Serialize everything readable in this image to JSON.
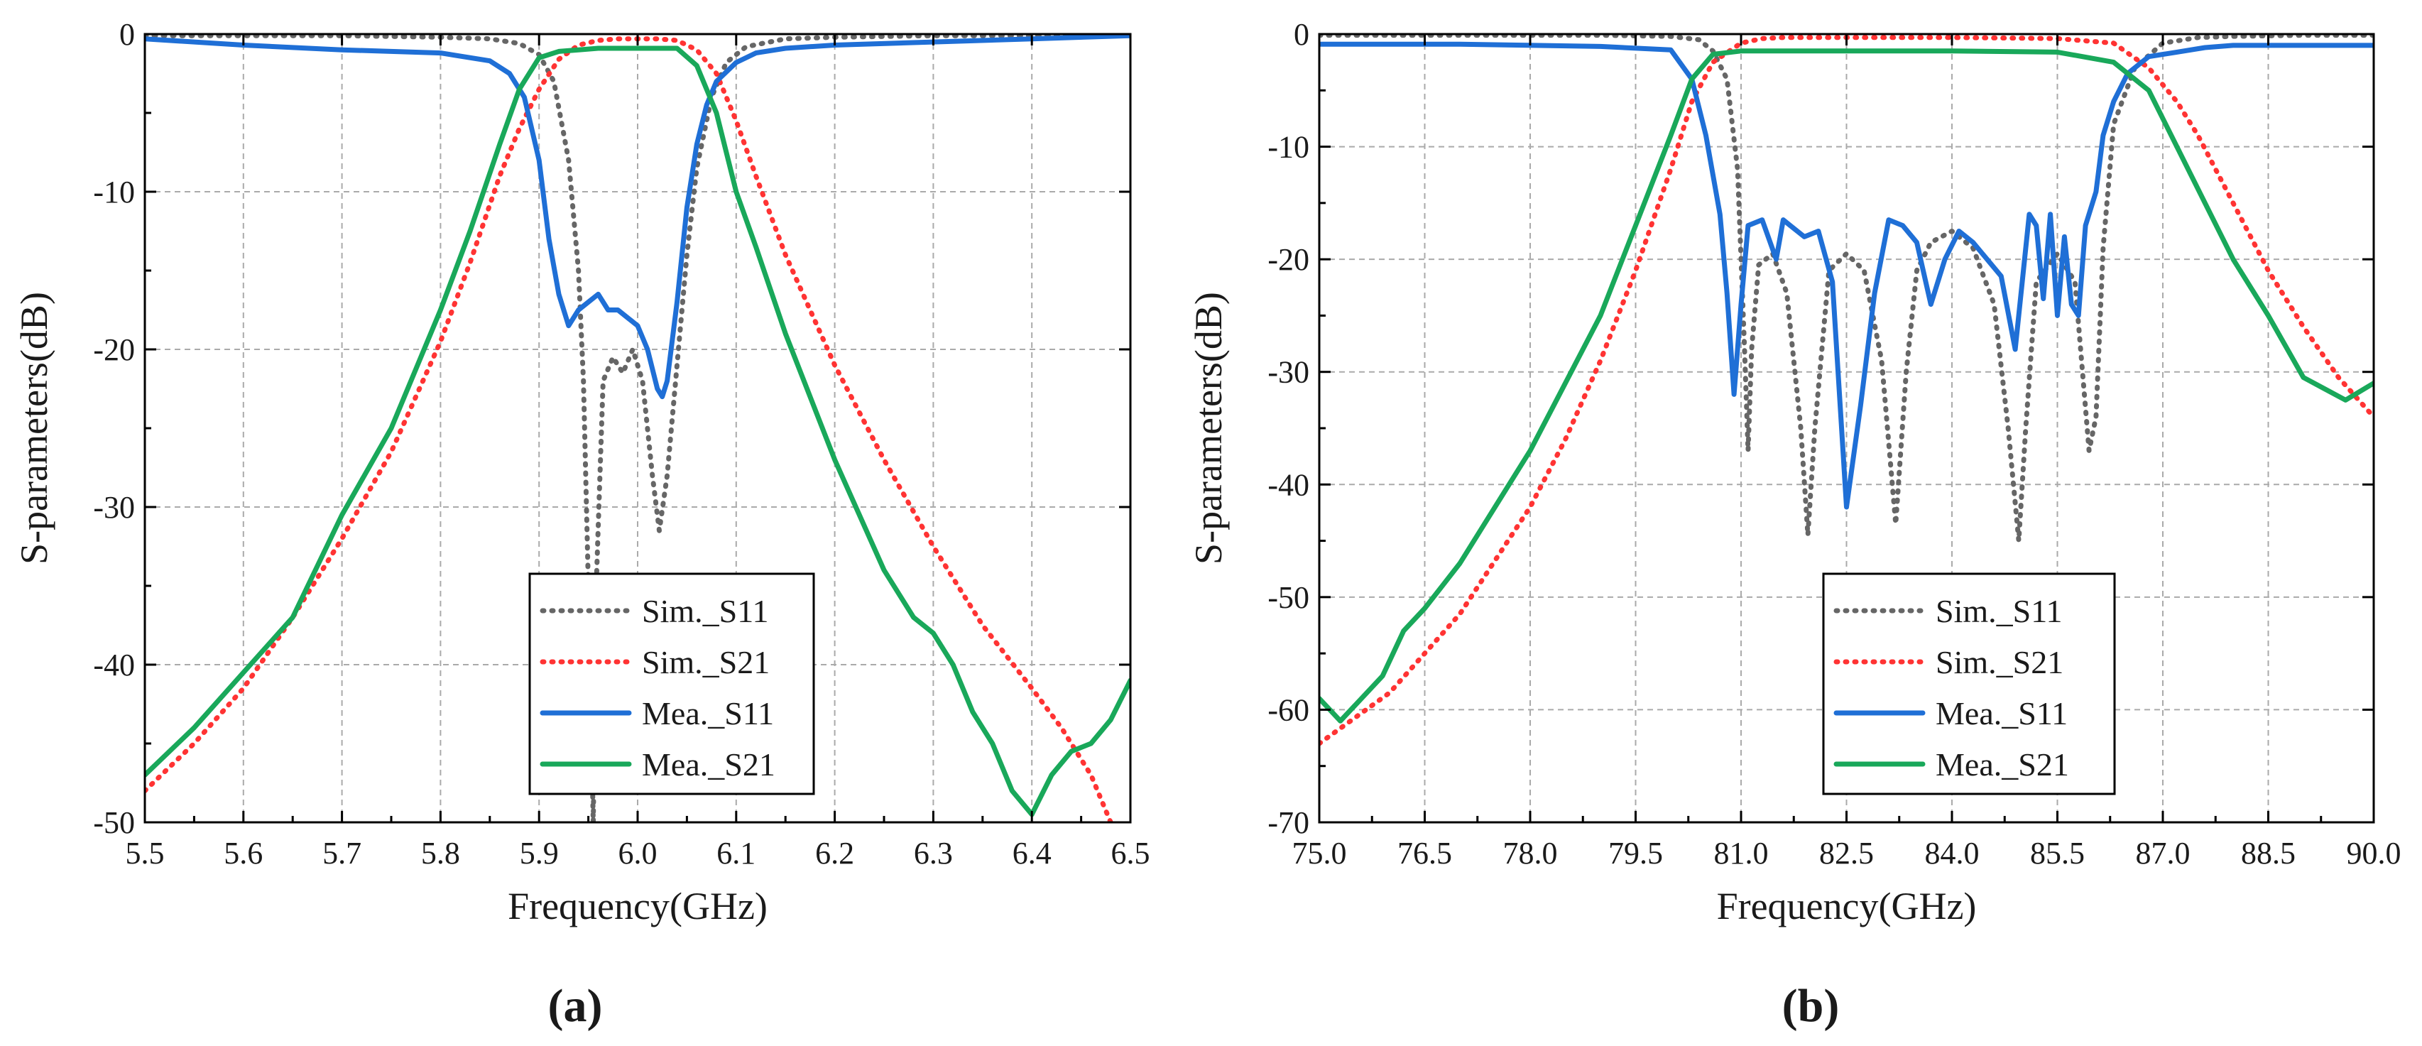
{
  "chart_data": [
    {
      "type": "line",
      "panel_label": "(a)",
      "xlabel": "Frequency(GHz)",
      "ylabel": "S-parameters(dB)",
      "xlim": [
        5.5,
        6.5
      ],
      "ylim": [
        -50,
        0
      ],
      "xticks": [
        "5.5",
        "5.6",
        "5.7",
        "5.8",
        "5.9",
        "6.0",
        "6.1",
        "6.2",
        "6.3",
        "6.4",
        "6.5"
      ],
      "yticks": [
        "0",
        "-10",
        "-20",
        "-30",
        "-40",
        "-50"
      ],
      "grid": true,
      "legend_position": "bottom-center",
      "series": [
        {
          "name": "Sim._S11",
          "color": "#666666",
          "style": "dotted",
          "x": [
            5.5,
            5.6,
            5.7,
            5.8,
            5.85,
            5.88,
            5.9,
            5.915,
            5.93,
            5.94,
            5.945,
            5.95,
            5.955,
            5.958,
            5.965,
            5.975,
            5.985,
            5.995,
            6.005,
            6.015,
            6.022,
            6.03,
            6.04,
            6.05,
            6.06,
            6.075,
            6.09,
            6.11,
            6.15,
            6.2,
            6.3,
            6.4,
            6.5
          ],
          "y": [
            -0.1,
            -0.1,
            -0.1,
            -0.2,
            -0.3,
            -0.6,
            -1.3,
            -3,
            -8,
            -15,
            -22,
            -35,
            -50,
            -35,
            -22,
            -20.5,
            -21.5,
            -20,
            -22,
            -28,
            -31.5,
            -28,
            -21,
            -14,
            -8.5,
            -4,
            -1.8,
            -0.8,
            -0.3,
            -0.2,
            -0.1,
            -0.1,
            -0.1
          ]
        },
        {
          "name": "Sim._S21",
          "color": "#ff3333",
          "style": "dotted",
          "x": [
            5.5,
            5.55,
            5.6,
            5.65,
            5.7,
            5.75,
            5.8,
            5.83,
            5.86,
            5.88,
            5.9,
            5.92,
            5.94,
            5.96,
            5.98,
            6.0,
            6.02,
            6.04,
            6.06,
            6.08,
            6.1,
            6.12,
            6.15,
            6.2,
            6.25,
            6.3,
            6.35,
            6.4,
            6.43,
            6.46,
            6.48
          ],
          "y": [
            -48,
            -45,
            -41.5,
            -37,
            -32,
            -26.5,
            -19.5,
            -14.5,
            -9,
            -6,
            -3.5,
            -1.6,
            -0.7,
            -0.4,
            -0.3,
            -0.3,
            -0.3,
            -0.4,
            -1,
            -2.5,
            -5.5,
            -9,
            -14,
            -21,
            -27,
            -32.5,
            -37.5,
            -41.5,
            -44,
            -47,
            -50
          ]
        },
        {
          "name": "Mea._S11",
          "color": "#1f6fd6",
          "style": "solid",
          "x": [
            5.5,
            5.6,
            5.7,
            5.8,
            5.85,
            5.87,
            5.885,
            5.9,
            5.91,
            5.92,
            5.93,
            5.94,
            5.95,
            5.96,
            5.97,
            5.98,
            5.99,
            6.0,
            6.01,
            6.02,
            6.025,
            6.03,
            6.04,
            6.05,
            6.06,
            6.07,
            6.08,
            6.1,
            6.12,
            6.15,
            6.2,
            6.3,
            6.4,
            6.5
          ],
          "y": [
            -0.3,
            -0.7,
            -1,
            -1.2,
            -1.7,
            -2.5,
            -4,
            -8,
            -13,
            -16.5,
            -18.5,
            -17.5,
            -17,
            -16.5,
            -17.5,
            -17.5,
            -18,
            -18.5,
            -20,
            -22.5,
            -23,
            -22,
            -17,
            -11,
            -7,
            -4.5,
            -3,
            -1.8,
            -1.2,
            -0.9,
            -0.7,
            -0.5,
            -0.3,
            -0.1
          ]
        },
        {
          "name": "Mea._S21",
          "color": "#19a85a",
          "style": "solid",
          "x": [
            5.5,
            5.55,
            5.6,
            5.65,
            5.7,
            5.75,
            5.8,
            5.83,
            5.86,
            5.88,
            5.9,
            5.92,
            5.94,
            5.96,
            6.0,
            6.04,
            6.06,
            6.08,
            6.1,
            6.12,
            6.15,
            6.2,
            6.25,
            6.28,
            6.3,
            6.32,
            6.34,
            6.36,
            6.38,
            6.4,
            6.42,
            6.44,
            6.46,
            6.48,
            6.5
          ],
          "y": [
            -47,
            -44,
            -40.5,
            -37,
            -30.5,
            -25,
            -17.5,
            -12.5,
            -7,
            -3.5,
            -1.5,
            -1.1,
            -1,
            -0.9,
            -0.9,
            -0.9,
            -2,
            -5,
            -10,
            -13.5,
            -19,
            -27,
            -34,
            -37,
            -38,
            -40,
            -43,
            -45,
            -48,
            -49.5,
            -47,
            -45.5,
            -45,
            -43.5,
            -41
          ]
        }
      ]
    },
    {
      "type": "line",
      "panel_label": "(b)",
      "xlabel": "Frequency(GHz)",
      "ylabel": "S-parameters(dB)",
      "xlim": [
        75,
        90
      ],
      "ylim": [
        -70,
        0
      ],
      "xticks": [
        "75.0",
        "76.5",
        "78.0",
        "79.5",
        "81.0",
        "82.5",
        "84.0",
        "85.5",
        "87.0",
        "88.5",
        "90.0"
      ],
      "yticks": [
        "0",
        "-10",
        "-20",
        "-30",
        "-40",
        "-50",
        "-60",
        "-70"
      ],
      "grid": true,
      "legend_position": "bottom-center",
      "series": [
        {
          "name": "Sim._S11",
          "color": "#666666",
          "style": "dotted",
          "x": [
            75,
            77,
            79,
            80,
            80.4,
            80.6,
            80.8,
            80.95,
            81.05,
            81.1,
            81.15,
            81.25,
            81.45,
            81.65,
            81.85,
            81.95,
            82.05,
            82.25,
            82.5,
            82.75,
            83,
            83.2,
            83.35,
            83.5,
            83.7,
            84,
            84.3,
            84.6,
            84.8,
            84.95,
            85.05,
            85.2,
            85.5,
            85.75,
            85.95,
            86.05,
            86.15,
            86.3,
            86.6,
            87,
            87.5,
            88,
            89,
            90
          ],
          "y": [
            -0.1,
            -0.1,
            -0.1,
            -0.2,
            -0.5,
            -1.5,
            -4,
            -12,
            -28,
            -37,
            -28,
            -20.5,
            -19.5,
            -23,
            -35,
            -44.5,
            -35,
            -21,
            -19.5,
            -21,
            -29,
            -43.5,
            -30,
            -21,
            -18.5,
            -17.5,
            -19,
            -24,
            -35,
            -45,
            -35,
            -22,
            -19.5,
            -22,
            -37,
            -34,
            -19,
            -8,
            -3,
            -0.8,
            -0.3,
            -0.2,
            -0.1,
            -0.1
          ]
        },
        {
          "name": "Sim._S21",
          "color": "#ff3333",
          "style": "dotted",
          "x": [
            75,
            76,
            77,
            78,
            78.5,
            79,
            79.5,
            80,
            80.3,
            80.6,
            81,
            81.3,
            81.6,
            82.5,
            84,
            85.5,
            86.3,
            86.8,
            87.2,
            87.5,
            88,
            88.5,
            89,
            89.5,
            90
          ],
          "y": [
            -63,
            -58.5,
            -51.5,
            -42,
            -36,
            -29,
            -21,
            -12,
            -6,
            -2.5,
            -0.8,
            -0.4,
            -0.3,
            -0.3,
            -0.3,
            -0.4,
            -0.8,
            -3,
            -6,
            -9,
            -15,
            -21,
            -26,
            -30.5,
            -34
          ]
        },
        {
          "name": "Mea._S11",
          "color": "#1f6fd6",
          "style": "solid",
          "x": [
            75,
            77,
            79,
            80,
            80.3,
            80.5,
            80.7,
            80.8,
            80.9,
            81,
            81.1,
            81.3,
            81.5,
            81.6,
            81.7,
            81.9,
            82.1,
            82.3,
            82.5,
            82.7,
            82.9,
            83.1,
            83.3,
            83.5,
            83.7,
            83.9,
            84.1,
            84.3,
            84.5,
            84.7,
            84.9,
            85.1,
            85.2,
            85.3,
            85.4,
            85.5,
            85.6,
            85.7,
            85.8,
            85.9,
            86.05,
            86.15,
            86.3,
            86.5,
            86.8,
            87.2,
            87.6,
            88,
            89,
            90
          ],
          "y": [
            -0.9,
            -0.9,
            -1.1,
            -1.4,
            -4,
            -9,
            -16,
            -23,
            -32,
            -24,
            -17,
            -16.5,
            -20,
            -16.5,
            -17,
            -18,
            -17.5,
            -22,
            -42,
            -33,
            -23,
            -16.5,
            -17,
            -18.5,
            -24,
            -20,
            -17.5,
            -18.5,
            -20,
            -21.5,
            -28,
            -16,
            -17,
            -23.5,
            -16,
            -25,
            -18,
            -24,
            -25,
            -17,
            -14,
            -9,
            -6,
            -3.5,
            -2,
            -1.6,
            -1.2,
            -1,
            -1,
            -1
          ]
        },
        {
          "name": "Mea._S21",
          "color": "#19a85a",
          "style": "solid",
          "x": [
            75,
            75.3,
            75.6,
            75.9,
            76.2,
            76.5,
            77,
            77.3,
            77.6,
            78,
            78.5,
            79,
            79.5,
            80,
            80.3,
            80.6,
            81,
            81.5,
            82.5,
            84,
            85.5,
            86.3,
            86.8,
            87.2,
            87.6,
            88,
            88.5,
            89,
            89.3,
            89.6,
            90
          ],
          "y": [
            -59,
            -61,
            -59,
            -57,
            -53,
            -51,
            -47,
            -44,
            -41,
            -37,
            -31,
            -25,
            -17,
            -9,
            -4,
            -1.8,
            -1.5,
            -1.5,
            -1.5,
            -1.5,
            -1.6,
            -2.5,
            -5,
            -10,
            -15,
            -20,
            -25,
            -30.5,
            -31.5,
            -32.5,
            -31
          ]
        }
      ]
    }
  ]
}
